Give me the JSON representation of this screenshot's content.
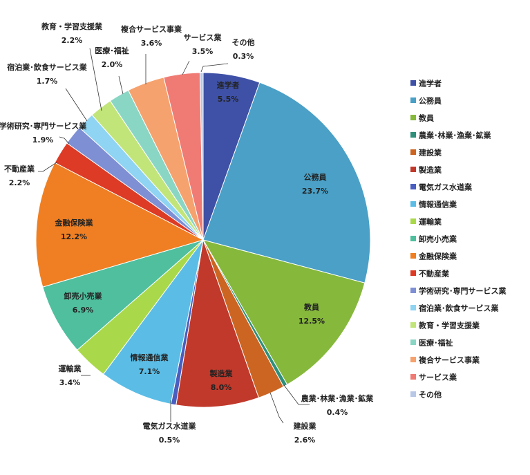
{
  "chart_data": {
    "type": "pie",
    "title": "",
    "unit": "%",
    "categories": [
      "進学者",
      "公務員",
      "教員",
      "農業・林業・漁業・鉱業",
      "建設業",
      "製造業",
      "電気ガス水道業",
      "情報通信業",
      "運輸業",
      "卸売小売業",
      "金融保険業",
      "不動産業",
      "学術研究・専門サービス業",
      "宿泊業・飲食サービス業",
      "教育・学習支援業",
      "医療・福祉",
      "複合サービス事業",
      "サービス業",
      "その他"
    ],
    "values": [
      5.5,
      23.7,
      12.5,
      0.4,
      2.6,
      8.0,
      0.5,
      7.1,
      3.4,
      6.9,
      12.2,
      2.2,
      1.9,
      1.7,
      2.2,
      2.0,
      3.6,
      3.5,
      0.3
    ],
    "value_labels": [
      "5.5%",
      "23.7%",
      "12.5%",
      "0.4%",
      "2.6%",
      "8.0%",
      "0.5%",
      "7.1%",
      "3.4%",
      "6.9%",
      "12.2%",
      "2.2%",
      "1.9%",
      "1.7%",
      "2.2%",
      "2.0%",
      "3.6%",
      "3.5%",
      "0.3%"
    ],
    "slice_labels": [
      "進学者",
      "公務員",
      "教員",
      "農業･林業･漁業･鉱業",
      "建設業",
      "製造業",
      "電気ガス水道業",
      "情報通信業",
      "運輸業",
      "卸売小売業",
      "金融保険業",
      "不動産業",
      "学術研究･専門サービス業",
      "宿泊業･飲食サービス業",
      "教育・学習支援業",
      "医療･福祉",
      "複合サービス事業",
      "サービス業",
      "その他"
    ],
    "legend_labels": [
      "進学者",
      "公務員",
      "教員",
      "農業･林業･漁業･鉱業",
      "建設業",
      "製造業",
      "電気ガス水道業",
      "情報通信業",
      "運輸業",
      "卸売小売業",
      "金融保険業",
      "不動産業",
      "学術研究･専門サービス業",
      "宿泊業･飲食サービス業",
      "教育・学習支援業",
      "医療･福祉",
      "複合サービス事業",
      "サービス業",
      "その他"
    ],
    "colors": [
      "#3f51a6",
      "#4aa0c6",
      "#86b83b",
      "#2f8f7a",
      "#cc6522",
      "#c0392b",
      "#4a5ec0",
      "#5bbde6",
      "#a9d94a",
      "#4fbf9e",
      "#ef7f22",
      "#dd3b25",
      "#7f8fd4",
      "#8fd4f2",
      "#c2e57a",
      "#8ad6c4",
      "#f6a26e",
      "#f07b74",
      "#b9c7e6"
    ],
    "start_angle": 0,
    "direction": "clockwise",
    "legend_position": "right"
  }
}
